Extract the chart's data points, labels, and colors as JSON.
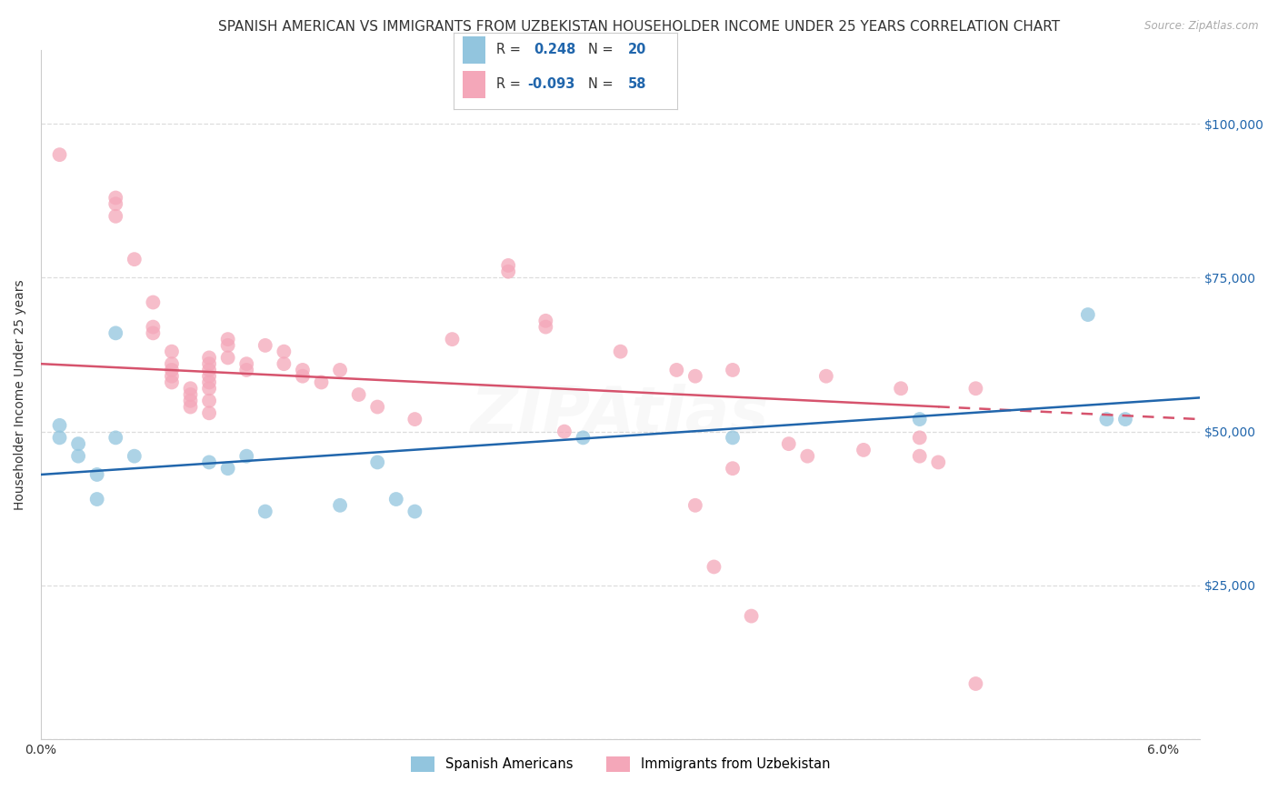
{
  "title": "SPANISH AMERICAN VS IMMIGRANTS FROM UZBEKISTAN HOUSEHOLDER INCOME UNDER 25 YEARS CORRELATION CHART",
  "source": "Source: ZipAtlas.com",
  "ylabel": "Householder Income Under 25 years",
  "xlim": [
    0.0,
    0.062
  ],
  "ylim": [
    0,
    112000
  ],
  "yticks": [
    0,
    25000,
    50000,
    75000,
    100000
  ],
  "ytick_labels": [
    "",
    "$25,000",
    "$50,000",
    "$75,000",
    "$100,000"
  ],
  "xticks": [
    0.0,
    0.01,
    0.02,
    0.03,
    0.04,
    0.05,
    0.06
  ],
  "xtick_labels": [
    "0.0%",
    "",
    "",
    "",
    "",
    "",
    "6.0%"
  ],
  "blue_color": "#92c5de",
  "pink_color": "#f4a7b9",
  "blue_line_color": "#2166ac",
  "pink_line_color": "#d6536d",
  "watermark": "ZIPAtlas",
  "background_color": "#ffffff",
  "grid_color": "#dddddd",
  "title_fontsize": 11,
  "axis_label_fontsize": 10,
  "tick_fontsize": 10,
  "watermark_alpha": 0.12,
  "watermark_fontsize": 52,
  "blue_points": [
    [
      0.001,
      49000
    ],
    [
      0.001,
      51000
    ],
    [
      0.002,
      48000
    ],
    [
      0.002,
      46000
    ],
    [
      0.003,
      43000
    ],
    [
      0.003,
      39000
    ],
    [
      0.004,
      66000
    ],
    [
      0.004,
      49000
    ],
    [
      0.005,
      46000
    ],
    [
      0.009,
      45000
    ],
    [
      0.01,
      44000
    ],
    [
      0.011,
      46000
    ],
    [
      0.012,
      37000
    ],
    [
      0.016,
      38000
    ],
    [
      0.018,
      45000
    ],
    [
      0.019,
      39000
    ],
    [
      0.02,
      37000
    ],
    [
      0.029,
      49000
    ],
    [
      0.037,
      49000
    ],
    [
      0.047,
      52000
    ],
    [
      0.056,
      69000
    ],
    [
      0.057,
      52000
    ],
    [
      0.058,
      52000
    ]
  ],
  "pink_points": [
    [
      0.001,
      95000
    ],
    [
      0.004,
      88000
    ],
    [
      0.004,
      87000
    ],
    [
      0.004,
      85000
    ],
    [
      0.005,
      78000
    ],
    [
      0.006,
      71000
    ],
    [
      0.006,
      67000
    ],
    [
      0.006,
      66000
    ],
    [
      0.007,
      63000
    ],
    [
      0.007,
      61000
    ],
    [
      0.007,
      60000
    ],
    [
      0.007,
      59000
    ],
    [
      0.007,
      58000
    ],
    [
      0.008,
      57000
    ],
    [
      0.008,
      56000
    ],
    [
      0.008,
      55000
    ],
    [
      0.008,
      54000
    ],
    [
      0.009,
      62000
    ],
    [
      0.009,
      61000
    ],
    [
      0.009,
      60000
    ],
    [
      0.009,
      59000
    ],
    [
      0.009,
      58000
    ],
    [
      0.009,
      57000
    ],
    [
      0.009,
      55000
    ],
    [
      0.009,
      53000
    ],
    [
      0.01,
      65000
    ],
    [
      0.01,
      64000
    ],
    [
      0.01,
      62000
    ],
    [
      0.011,
      61000
    ],
    [
      0.011,
      60000
    ],
    [
      0.012,
      64000
    ],
    [
      0.013,
      63000
    ],
    [
      0.013,
      61000
    ],
    [
      0.014,
      60000
    ],
    [
      0.014,
      59000
    ],
    [
      0.015,
      58000
    ],
    [
      0.016,
      60000
    ],
    [
      0.017,
      56000
    ],
    [
      0.018,
      54000
    ],
    [
      0.02,
      52000
    ],
    [
      0.022,
      65000
    ],
    [
      0.025,
      77000
    ],
    [
      0.025,
      76000
    ],
    [
      0.027,
      68000
    ],
    [
      0.027,
      67000
    ],
    [
      0.028,
      50000
    ],
    [
      0.031,
      63000
    ],
    [
      0.034,
      60000
    ],
    [
      0.035,
      59000
    ],
    [
      0.035,
      38000
    ],
    [
      0.036,
      28000
    ],
    [
      0.037,
      60000
    ],
    [
      0.037,
      44000
    ],
    [
      0.038,
      20000
    ],
    [
      0.04,
      48000
    ],
    [
      0.041,
      46000
    ],
    [
      0.042,
      59000
    ],
    [
      0.044,
      47000
    ],
    [
      0.046,
      57000
    ],
    [
      0.047,
      49000
    ],
    [
      0.047,
      46000
    ],
    [
      0.048,
      45000
    ],
    [
      0.05,
      9000
    ],
    [
      0.05,
      57000
    ]
  ]
}
